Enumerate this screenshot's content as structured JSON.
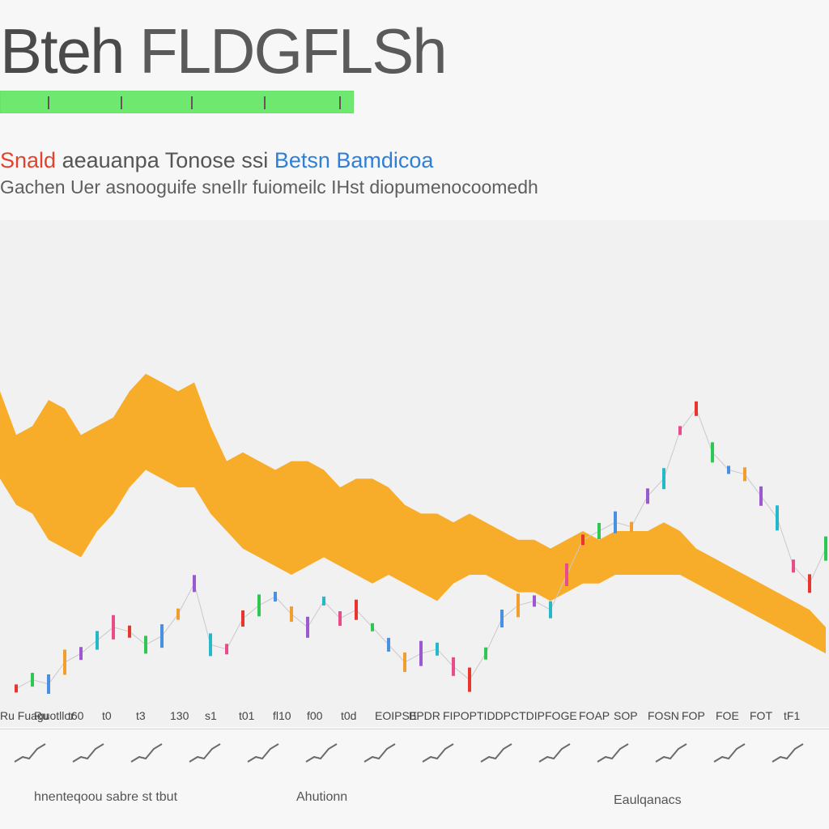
{
  "title": {
    "part_a": "Bteh",
    "part_b": "FLDGFLSh"
  },
  "subtitle_line1": {
    "red": "Snald",
    "gray": "aeauanpa Tonose ssi",
    "blue": "Betsn Bamdicoa"
  },
  "subtitle_line2": "Gachen Uer asnooguife sneIlr fuiomeilc IHst diopumenocoomedh",
  "progress": {
    "fraction": 1.0
  },
  "colors": {
    "area": "#f8ad2a",
    "candles": [
      "#e8362e",
      "#2fc653",
      "#4a90e2",
      "#f29e2e",
      "#9b59d0",
      "#25b8c9",
      "#e84c8b"
    ],
    "progress_fill": "#6ee86e"
  },
  "chart_data": {
    "type": "area",
    "title": "",
    "xlabel": "",
    "ylabel": "",
    "x_tick_labels": [
      "Ru Fuaguotllor",
      "Ru",
      "t60",
      "t0",
      "t3",
      "130",
      "s1",
      "t01",
      "fl10",
      "f00",
      "t0d",
      "EOIPSE",
      "BPDR",
      "FIPOP",
      "TIDDP",
      "CTDIP",
      "FOGE",
      "FOAP",
      "SOP",
      "FOSN",
      "FOP",
      "FOE",
      "FOT",
      "tF1"
    ],
    "series": [
      {
        "kind": "area-band",
        "x": [
          0,
          20,
          40,
          60,
          80,
          100,
          120,
          140,
          160,
          180,
          200,
          220,
          240,
          260,
          280,
          300,
          320,
          340,
          360,
          380,
          400,
          420,
          440,
          460,
          480,
          500,
          520,
          540,
          560,
          580,
          600,
          620,
          640,
          660,
          680,
          700,
          720,
          740,
          760,
          780,
          800,
          820,
          840,
          860,
          880,
          900,
          920,
          940,
          960,
          980,
          1000,
          1020
        ],
        "upper": [
          72,
          62,
          64,
          70,
          68,
          62,
          64,
          66,
          72,
          76,
          74,
          72,
          74,
          64,
          56,
          58,
          56,
          54,
          56,
          56,
          54,
          50,
          52,
          52,
          50,
          46,
          44,
          44,
          42,
          44,
          42,
          40,
          38,
          38,
          36,
          38,
          40,
          38,
          40,
          40,
          40,
          42,
          40,
          36,
          34,
          32,
          30,
          28,
          26,
          24,
          22,
          18
        ],
        "lower": [
          52,
          46,
          44,
          38,
          36,
          34,
          40,
          44,
          50,
          54,
          52,
          50,
          50,
          44,
          40,
          36,
          34,
          32,
          30,
          32,
          34,
          32,
          30,
          28,
          30,
          28,
          26,
          24,
          28,
          30,
          30,
          28,
          26,
          26,
          24,
          26,
          28,
          28,
          30,
          30,
          30,
          30,
          30,
          28,
          26,
          24,
          22,
          20,
          18,
          16,
          14,
          12
        ]
      },
      {
        "kind": "candles",
        "x": [
          20,
          40,
          60,
          80,
          100,
          120,
          140,
          160,
          180,
          200,
          220,
          240,
          260,
          280,
          300,
          320,
          340,
          360,
          380,
          400,
          420,
          440,
          460,
          480,
          500,
          520,
          540,
          560,
          580,
          600,
          620,
          640,
          660,
          680,
          700,
          720,
          740,
          760,
          780,
          800,
          820,
          840,
          860,
          880,
          900,
          920,
          940,
          960,
          980,
          1000,
          1020
        ],
        "value": [
          4,
          6,
          5,
          10,
          12,
          15,
          18,
          17,
          14,
          16,
          21,
          28,
          14,
          13,
          20,
          23,
          25,
          21,
          18,
          24,
          20,
          22,
          18,
          14,
          10,
          12,
          13,
          9,
          6,
          12,
          20,
          23,
          24,
          22,
          30,
          38,
          40,
          42,
          41,
          48,
          52,
          63,
          68,
          58,
          54,
          53,
          48,
          43,
          32,
          28,
          36
        ]
      }
    ]
  },
  "footer": {
    "left": "hnenteqoou sabre st tbut",
    "center": "Ahutionn",
    "right": "Eaulqanacs"
  }
}
